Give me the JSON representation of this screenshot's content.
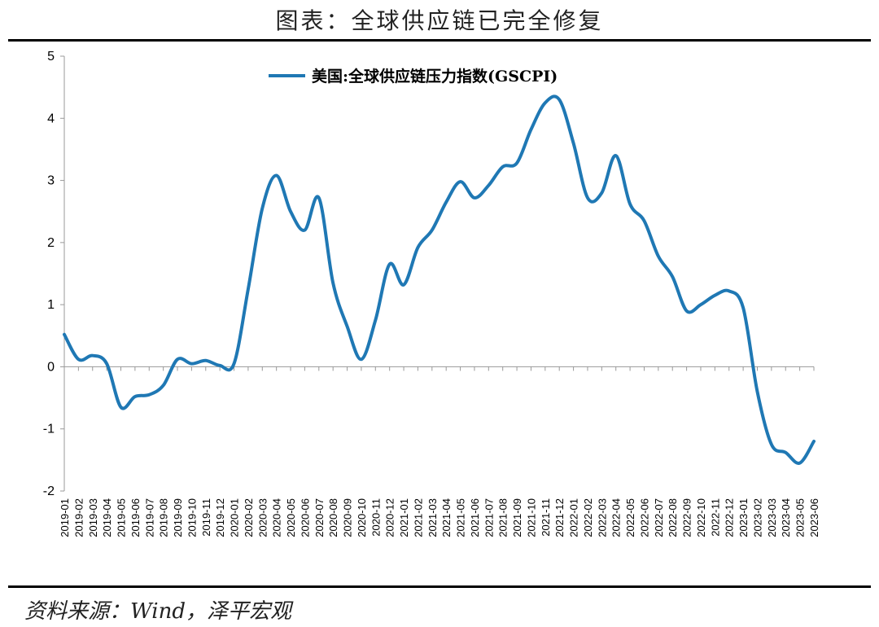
{
  "page": {
    "title": "图表：全球供应链已完全修复",
    "source": "资料来源：Wind，泽平宏观"
  },
  "chart_data": {
    "type": "line",
    "ylim": [
      -2,
      5
    ],
    "yticks": [
      -2,
      -1,
      0,
      1,
      2,
      3,
      4,
      5
    ],
    "legend_position": "top-center",
    "grid": false,
    "color": "#1f78b4",
    "x": [
      "2019-01",
      "2019-02",
      "2019-03",
      "2019-04",
      "2019-05",
      "2019-06",
      "2019-07",
      "2019-08",
      "2019-09",
      "2019-10",
      "2019-11",
      "2019-12",
      "2020-01",
      "2020-02",
      "2020-03",
      "2020-04",
      "2020-05",
      "2020-06",
      "2020-07",
      "2020-08",
      "2020-09",
      "2020-10",
      "2020-11",
      "2020-12",
      "2021-01",
      "2021-02",
      "2021-03",
      "2021-04",
      "2021-05",
      "2021-06",
      "2021-07",
      "2021-08",
      "2021-09",
      "2021-10",
      "2021-11",
      "2021-12",
      "2022-01",
      "2022-02",
      "2022-03",
      "2022-04",
      "2022-05",
      "2022-06",
      "2022-07",
      "2022-08",
      "2022-09",
      "2022-10",
      "2022-11",
      "2022-12",
      "2023-01",
      "2023-02",
      "2023-03",
      "2023-04",
      "2023-05",
      "2023-06"
    ],
    "series": [
      {
        "name": "美国:全球供应链压力指数(GSCPI)",
        "values": [
          0.52,
          0.12,
          0.18,
          0.05,
          -0.65,
          -0.48,
          -0.45,
          -0.3,
          0.12,
          0.05,
          0.1,
          0.02,
          0.05,
          1.25,
          2.55,
          3.08,
          2.5,
          2.2,
          2.72,
          1.35,
          0.65,
          0.12,
          0.75,
          1.65,
          1.32,
          1.92,
          2.2,
          2.65,
          2.98,
          2.72,
          2.92,
          3.22,
          3.28,
          3.82,
          4.25,
          4.3,
          3.6,
          2.72,
          2.8,
          3.4,
          2.62,
          2.35,
          1.78,
          1.45,
          0.9,
          1.0,
          1.15,
          1.22,
          0.95,
          -0.4,
          -1.25,
          -1.38,
          -1.55,
          -1.2
        ]
      }
    ]
  }
}
